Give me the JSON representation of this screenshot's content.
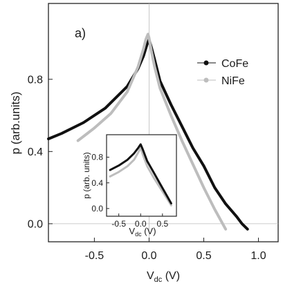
{
  "chart_data": [
    {
      "type": "line",
      "panel_label": "a)",
      "xlabel": "V",
      "xlabel_sub": "dc",
      "xlabel_unit": " (V)",
      "ylabel": "p (arb.units)",
      "xlim": [
        -0.92,
        1.18
      ],
      "ylim": [
        -0.1,
        1.22
      ],
      "x_ticks": [
        -0.5,
        0.0,
        0.5,
        1.0
      ],
      "x_tick_labels": [
        "-0.5",
        "0.0",
        "0.5",
        "1.0"
      ],
      "y_ticks": [
        0.0,
        0.4,
        0.8
      ],
      "y_tick_labels": [
        "0.0",
        "0.4",
        "0.8"
      ],
      "series": [
        {
          "name": "CoFe",
          "color": "#111111",
          "x": [
            -0.92,
            -0.8,
            -0.6,
            -0.4,
            -0.2,
            -0.1,
            -0.05,
            -0.02,
            0.0,
            0.02,
            0.05,
            0.1,
            0.2,
            0.3,
            0.4,
            0.5,
            0.6,
            0.7,
            0.8,
            0.85,
            0.9
          ],
          "y": [
            0.47,
            0.5,
            0.56,
            0.64,
            0.76,
            0.86,
            0.93,
            0.99,
            1.02,
            0.98,
            0.91,
            0.79,
            0.66,
            0.54,
            0.42,
            0.32,
            0.2,
            0.11,
            0.04,
            0.0,
            -0.03
          ]
        },
        {
          "name": "NiFe",
          "color": "#bdbdbd",
          "x": [
            -0.65,
            -0.5,
            -0.35,
            -0.2,
            -0.1,
            -0.05,
            -0.03,
            -0.01,
            0.0,
            0.02,
            0.05,
            0.1,
            0.2,
            0.3,
            0.4,
            0.5,
            0.6,
            0.7
          ],
          "y": [
            0.46,
            0.53,
            0.61,
            0.73,
            0.87,
            0.97,
            1.02,
            1.05,
            1.03,
            0.96,
            0.87,
            0.75,
            0.6,
            0.46,
            0.33,
            0.2,
            0.08,
            -0.03
          ]
        }
      ],
      "legend": "right"
    },
    {
      "type": "line",
      "role": "inset",
      "xlabel": "V",
      "xlabel_sub": "dc",
      "xlabel_unit": " (V)",
      "ylabel": "p (arb. units)",
      "xlim": [
        -0.78,
        0.82
      ],
      "ylim": [
        -0.12,
        1.15
      ],
      "x_ticks": [
        -0.5,
        0.0,
        0.5
      ],
      "x_tick_labels": [
        "-0.5",
        "0.0",
        "0.5"
      ],
      "y_ticks": [
        0.0,
        0.4,
        0.8
      ],
      "y_tick_labels": [
        "0.0",
        "0.4",
        "0.8"
      ],
      "series": [
        {
          "color": "#bdbdbd",
          "x": [
            -0.7,
            -0.5,
            -0.3,
            -0.15,
            -0.05,
            0.0,
            0.05,
            0.15,
            0.3,
            0.45,
            0.6,
            0.7
          ],
          "y": [
            0.5,
            0.57,
            0.66,
            0.76,
            0.88,
            0.95,
            0.84,
            0.66,
            0.48,
            0.32,
            0.16,
            0.05
          ]
        },
        {
          "color": "#111111",
          "x": [
            -0.7,
            -0.5,
            -0.3,
            -0.15,
            -0.05,
            0.0,
            0.05,
            0.15,
            0.3,
            0.45,
            0.6,
            0.7
          ],
          "y": [
            0.6,
            0.67,
            0.76,
            0.86,
            0.95,
            1.0,
            0.92,
            0.74,
            0.56,
            0.38,
            0.2,
            0.08
          ]
        }
      ]
    }
  ]
}
